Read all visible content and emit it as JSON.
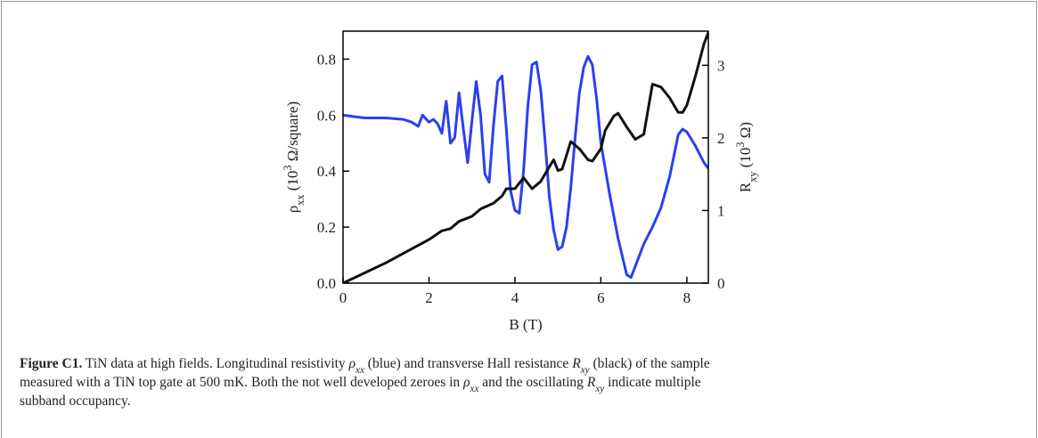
{
  "chart_data": {
    "type": "line",
    "xlabel": "B (T)",
    "ylabel": [
      {
        "text": "ρ"
      },
      {
        "text": "xx",
        "sub": true
      },
      {
        "text": " (10"
      },
      {
        "text": "3",
        "sup": true
      },
      {
        "text": " Ω/square)"
      }
    ],
    "y2label": [
      {
        "text": "R"
      },
      {
        "text": "xy",
        "sub": true
      },
      {
        "text": " (10"
      },
      {
        "text": "3",
        "sup": true
      },
      {
        "text": " Ω)"
      }
    ],
    "xlim": [
      0,
      8.5
    ],
    "xticks": [
      0,
      2,
      4,
      6,
      8
    ],
    "ylim": [
      0,
      0.9
    ],
    "yticks": [
      {
        "value": 0,
        "label": "0.0"
      },
      0.2,
      0.4,
      0.6,
      0.8
    ],
    "y2lim": [
      0,
      3.47
    ],
    "y2ticks": [
      0,
      1,
      2,
      3
    ],
    "series": [
      {
        "name": "ρxx",
        "color": "#2b3ff0",
        "axis": "y",
        "x": [
          0,
          0.5,
          1.0,
          1.4,
          1.6,
          1.75,
          1.85,
          2.0,
          2.1,
          2.2,
          2.3,
          2.4,
          2.5,
          2.6,
          2.7,
          2.8,
          2.9,
          3.0,
          3.1,
          3.2,
          3.3,
          3.4,
          3.5,
          3.6,
          3.7,
          3.8,
          3.9,
          4.0,
          4.1,
          4.2,
          4.3,
          4.4,
          4.5,
          4.6,
          4.7,
          4.8,
          4.9,
          5.0,
          5.1,
          5.2,
          5.3,
          5.4,
          5.5,
          5.6,
          5.7,
          5.8,
          5.9,
          6.0,
          6.2,
          6.4,
          6.6,
          6.7,
          6.8,
          7.0,
          7.2,
          7.4,
          7.6,
          7.8,
          7.9,
          8.0,
          8.2,
          8.4,
          8.5
        ],
        "values": [
          0.6,
          0.59,
          0.59,
          0.585,
          0.575,
          0.56,
          0.6,
          0.575,
          0.585,
          0.57,
          0.535,
          0.65,
          0.5,
          0.52,
          0.68,
          0.55,
          0.43,
          0.58,
          0.72,
          0.6,
          0.39,
          0.36,
          0.56,
          0.72,
          0.74,
          0.55,
          0.33,
          0.26,
          0.25,
          0.4,
          0.63,
          0.78,
          0.79,
          0.69,
          0.51,
          0.31,
          0.19,
          0.12,
          0.13,
          0.2,
          0.34,
          0.52,
          0.68,
          0.77,
          0.81,
          0.78,
          0.66,
          0.5,
          0.32,
          0.16,
          0.03,
          0.02,
          0.06,
          0.14,
          0.2,
          0.27,
          0.38,
          0.53,
          0.55,
          0.54,
          0.49,
          0.43,
          0.41
        ]
      },
      {
        "name": "Rxy",
        "color": "#111111",
        "axis": "y2",
        "x": [
          0,
          0.5,
          1.0,
          1.5,
          2.0,
          2.3,
          2.5,
          2.7,
          3.0,
          3.2,
          3.5,
          3.7,
          3.8,
          4.0,
          4.2,
          4.4,
          4.6,
          4.8,
          4.9,
          5.0,
          5.1,
          5.3,
          5.5,
          5.7,
          5.8,
          6.0,
          6.1,
          6.3,
          6.4,
          6.6,
          6.8,
          7.0,
          7.2,
          7.4,
          7.6,
          7.8,
          7.9,
          8.0,
          8.2,
          8.4,
          8.5
        ],
        "values": [
          0,
          0.14,
          0.28,
          0.44,
          0.6,
          0.72,
          0.75,
          0.85,
          0.92,
          1.02,
          1.1,
          1.2,
          1.3,
          1.3,
          1.45,
          1.3,
          1.4,
          1.6,
          1.7,
          1.55,
          1.57,
          1.95,
          1.85,
          1.7,
          1.68,
          1.85,
          2.1,
          2.3,
          2.34,
          2.15,
          1.98,
          2.05,
          2.74,
          2.7,
          2.55,
          2.35,
          2.35,
          2.45,
          2.85,
          3.3,
          3.45
        ]
      }
    ]
  },
  "caption": {
    "lines": [
      [
        {
          "text": "Figure C1.",
          "bold": true
        },
        {
          "text": "  TiN data at high fields. Longitudinal resistivity "
        },
        {
          "text": "ρ",
          "italic": true
        },
        {
          "text": "xx",
          "italic": true,
          "sub": true
        },
        {
          "text": " (blue) and transverse Hall resistance "
        },
        {
          "text": "R",
          "italic": true
        },
        {
          "text": "xy",
          "italic": true,
          "sub": true
        },
        {
          "text": " (black) of the sample"
        }
      ],
      [
        {
          "text": "measured with a TiN top gate at 500 mK. Both the not well developed zeroes in "
        },
        {
          "text": "ρ",
          "italic": true
        },
        {
          "text": "xx",
          "italic": true,
          "sub": true
        },
        {
          "text": " and the oscillating "
        },
        {
          "text": "R",
          "italic": true
        },
        {
          "text": "xy",
          "italic": true,
          "sub": true
        },
        {
          "text": " indicate multiple"
        }
      ],
      [
        {
          "text": "subband occupancy."
        }
      ]
    ]
  }
}
